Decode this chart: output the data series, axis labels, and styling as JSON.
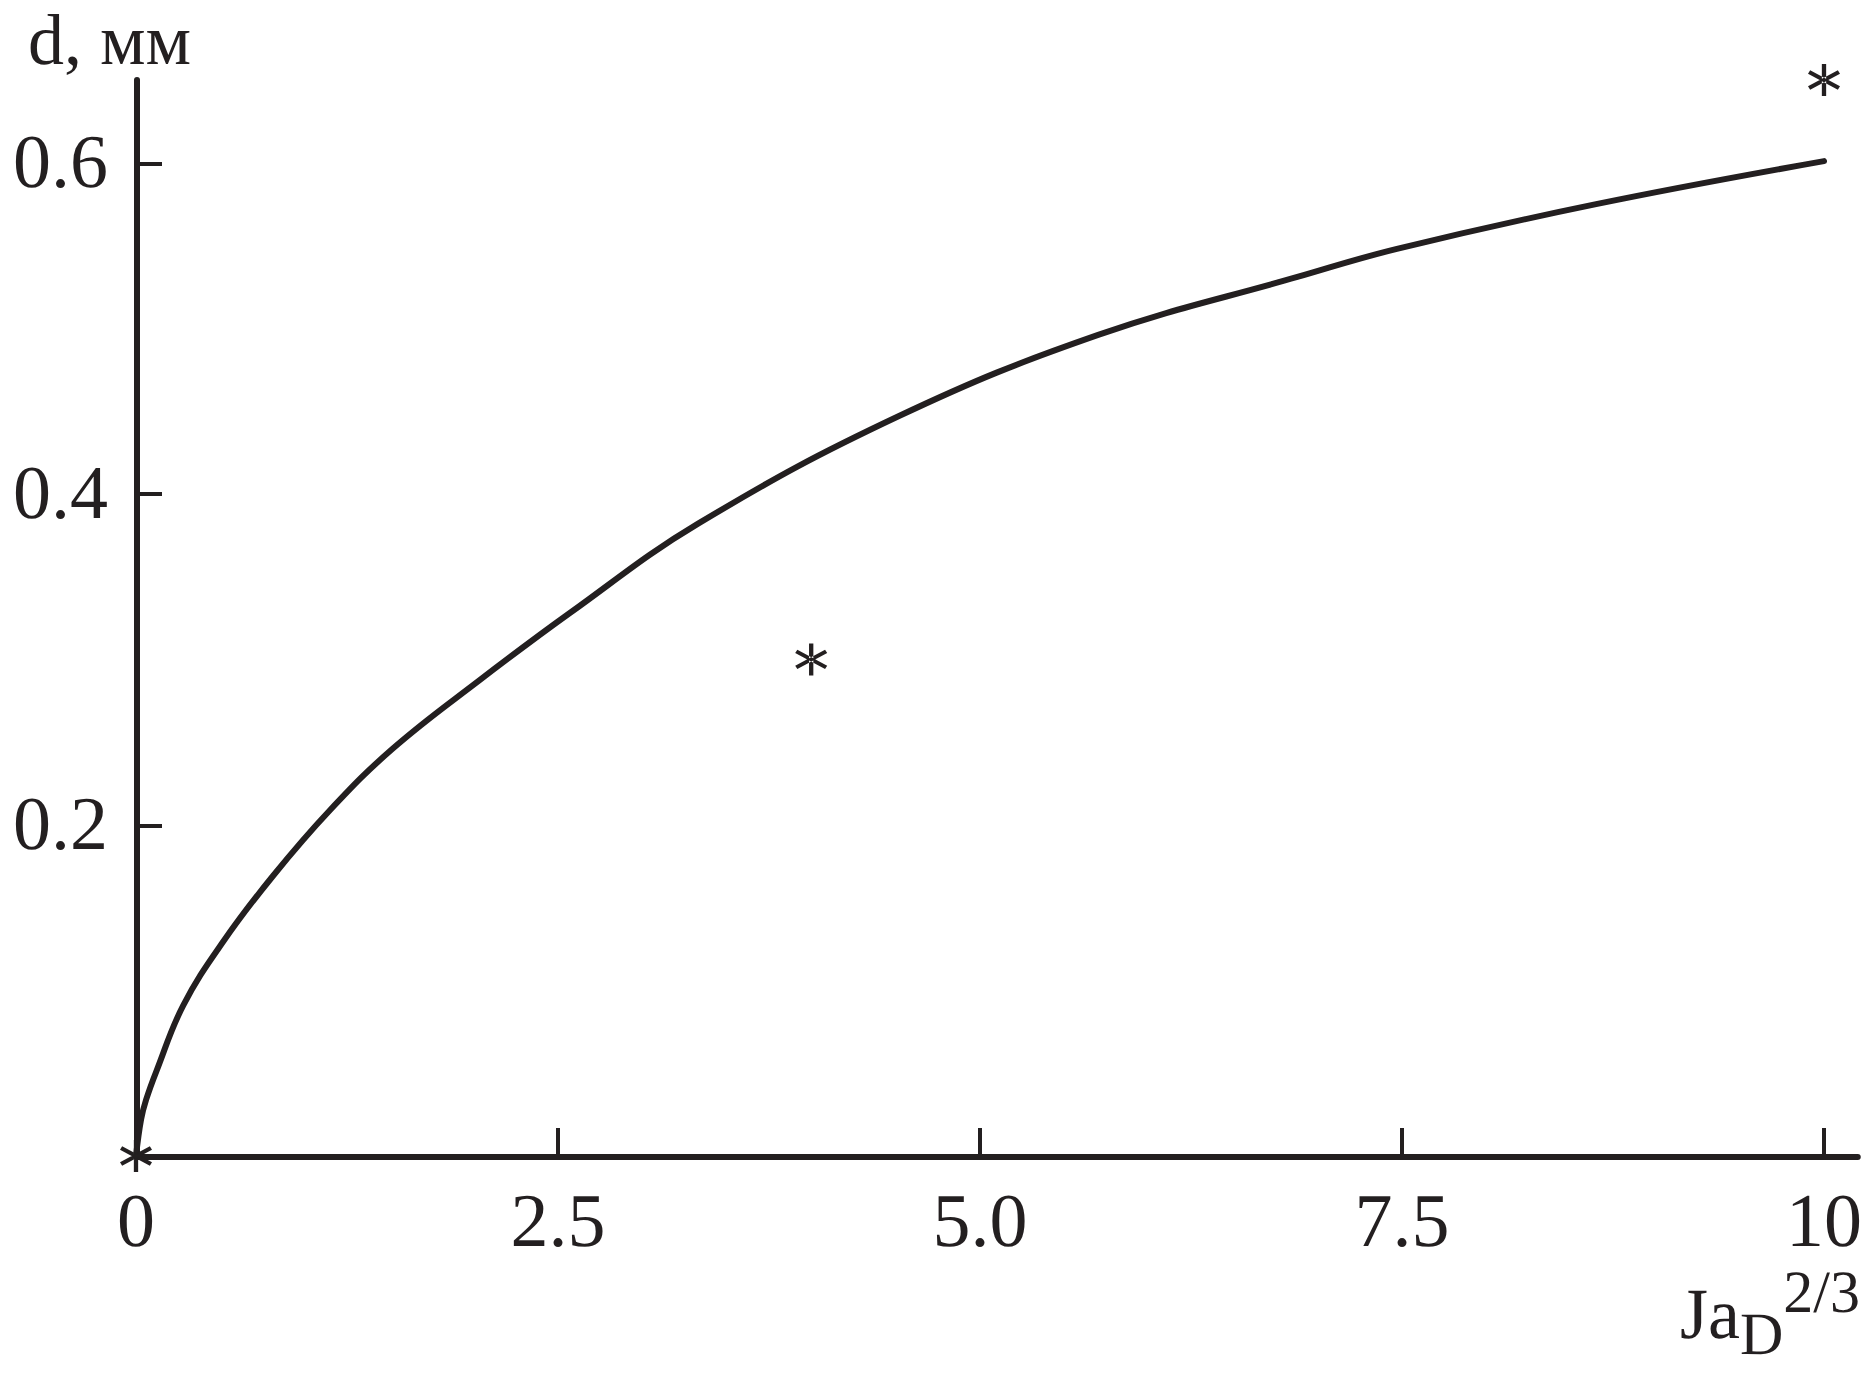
{
  "chart_data": {
    "type": "line",
    "xlabel": "Ja$_{D}$$^{2/3}$",
    "ylabel": "d, мм",
    "xlim": [
      0,
      10.2
    ],
    "ylim": [
      0,
      0.65
    ],
    "xticks": [
      0,
      2.5,
      {
        "value": 5,
        "label": "5.0"
      },
      7.5,
      10
    ],
    "yticks": [
      0.2,
      0.4,
      0.6
    ],
    "series": [
      {
        "color": "#231f20",
        "marker": "none",
        "line_style": "solid",
        "x": [
          0,
          0.03,
          0.06,
          0.12,
          0.28,
          0.52,
          0.81,
          1.15,
          1.52,
          2.03,
          2.57,
          3.33,
          4.52,
          5.7,
          6.88,
          7.47,
          8.65,
          10
        ],
        "values": [
          0,
          0.022,
          0.034,
          0.051,
          0.091,
          0.13,
          0.169,
          0.209,
          0.246,
          0.287,
          0.328,
          0.382,
          0.447,
          0.496,
          0.531,
          0.548,
          0.575,
          0.601
        ]
      },
      {
        "type": "scatter",
        "color": "#231f20",
        "marker": "cross",
        "x": [
          0,
          4,
          10
        ],
        "values": [
          0,
          0.3,
          0.65
        ]
      }
    ]
  }
}
